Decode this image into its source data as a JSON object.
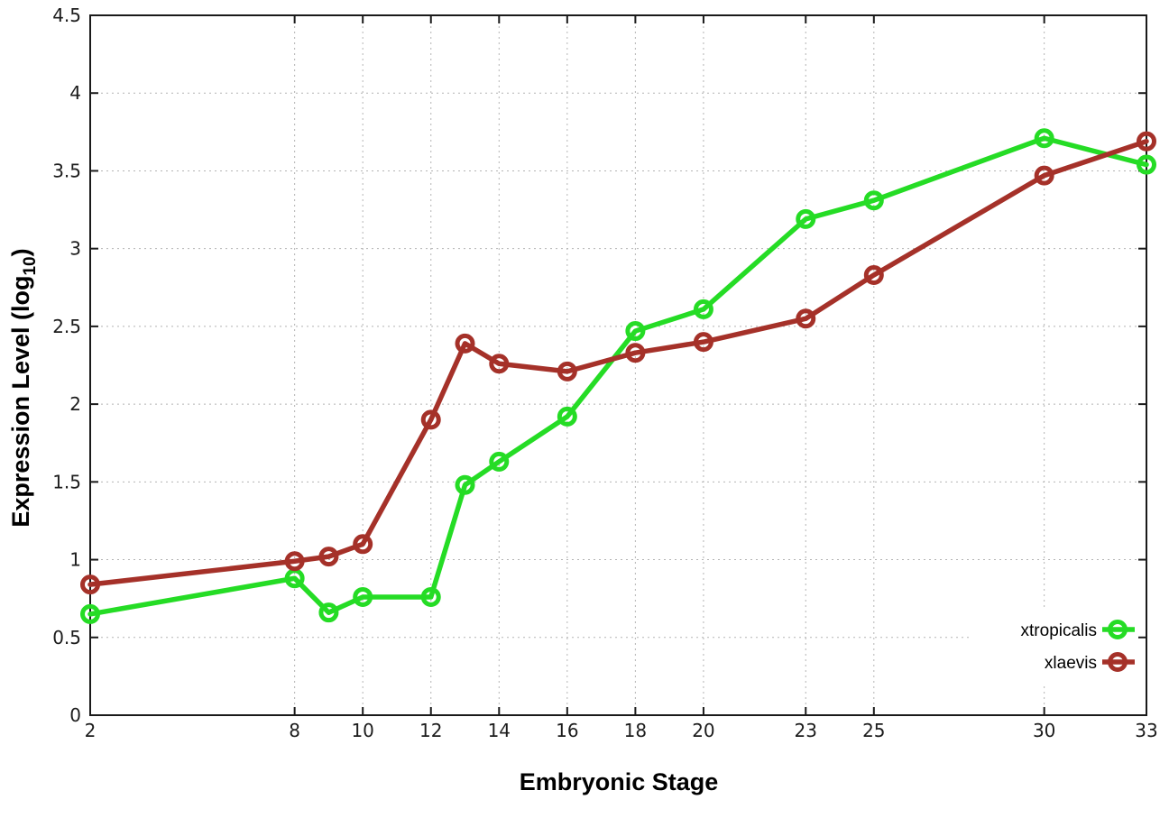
{
  "chart_data": {
    "type": "line",
    "title": "",
    "xlabel": "Embryonic Stage",
    "ylabel": "Expression Level (log10)",
    "ylabel_parts": {
      "main": "Expression Level (log",
      "sub": "10",
      "close": ")"
    },
    "xlim": [
      2,
      33
    ],
    "ylim": [
      0,
      4.5
    ],
    "grid": true,
    "legend_position": "bottom-right",
    "x": [
      2,
      8,
      9,
      10,
      12,
      13,
      14,
      16,
      18,
      20,
      23,
      25,
      30,
      33
    ],
    "xticks": [
      {
        "v": 2,
        "label": "2"
      },
      {
        "v": 8,
        "label": "8"
      },
      {
        "v": 10,
        "label": "10"
      },
      {
        "v": 12,
        "label": "12"
      },
      {
        "v": 14,
        "label": "14"
      },
      {
        "v": 16,
        "label": "16"
      },
      {
        "v": 18,
        "label": "18"
      },
      {
        "v": 20,
        "label": "20"
      },
      {
        "v": 23,
        "label": "23"
      },
      {
        "v": 25,
        "label": "25"
      },
      {
        "v": 30,
        "label": "30"
      },
      {
        "v": 33,
        "label": "33"
      }
    ],
    "yticks": [
      {
        "v": 0,
        "label": "0"
      },
      {
        "v": 0.5,
        "label": "0.5"
      },
      {
        "v": 1,
        "label": "1"
      },
      {
        "v": 1.5,
        "label": "1.5"
      },
      {
        "v": 2,
        "label": "2"
      },
      {
        "v": 2.5,
        "label": "2.5"
      },
      {
        "v": 3,
        "label": "3"
      },
      {
        "v": 3.5,
        "label": "3.5"
      },
      {
        "v": 4,
        "label": "4"
      },
      {
        "v": 4.5,
        "label": "4.5"
      }
    ],
    "series": [
      {
        "name": "xtropicalis",
        "color": "#25dc25",
        "marker": "open-circle",
        "values": [
          0.65,
          0.88,
          0.66,
          0.76,
          0.76,
          1.48,
          1.63,
          1.92,
          2.47,
          2.61,
          3.19,
          3.31,
          3.71,
          3.54
        ]
      },
      {
        "name": "xlaevis",
        "color": "#a53129",
        "marker": "open-circle",
        "values": [
          0.84,
          0.99,
          1.02,
          1.1,
          1.9,
          2.39,
          2.26,
          2.21,
          2.33,
          2.4,
          2.55,
          2.83,
          3.47,
          3.69
        ]
      }
    ],
    "colors": {
      "background": "#ffffff",
      "grid": "#b4b4b4",
      "axis": "#1a1a1a",
      "text": "#1c1c1c"
    }
  }
}
